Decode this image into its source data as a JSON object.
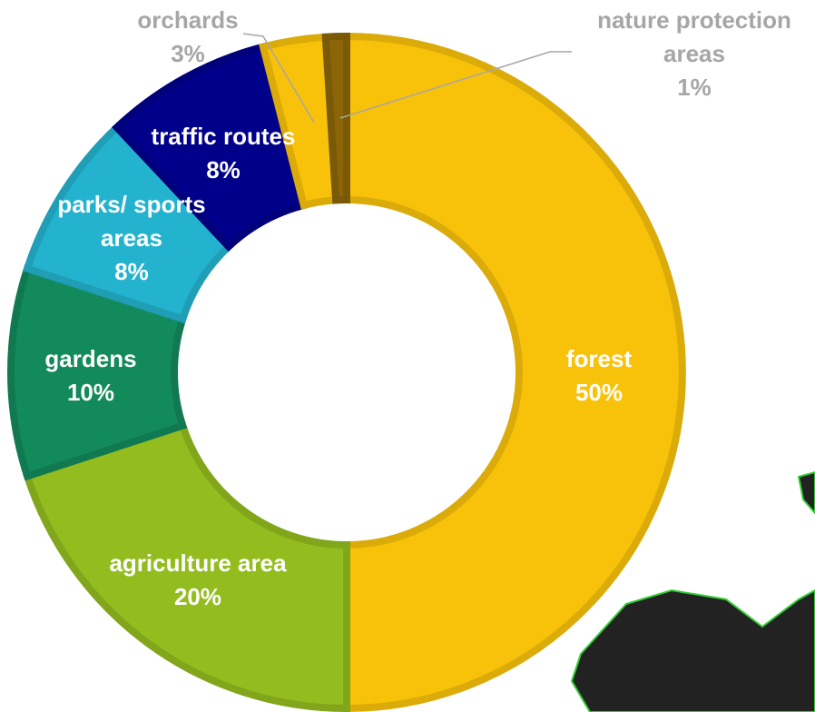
{
  "chart_data": {
    "type": "donut",
    "categories": [
      "forest",
      "agriculture area",
      "gardens",
      "parks/ sports areas",
      "traffic routes",
      "orchards",
      "nature protection areas"
    ],
    "values": [
      50,
      20,
      10,
      8,
      8,
      3,
      1
    ],
    "value_labels": [
      "50%",
      "20%",
      "10%",
      "8%",
      "8%",
      "3%",
      "1%"
    ],
    "colors": [
      "#f9c20a",
      "#93bd1f",
      "#138a5c",
      "#23b3cf",
      "#00008b",
      "#f9c20a",
      "#8b6508"
    ]
  }
}
